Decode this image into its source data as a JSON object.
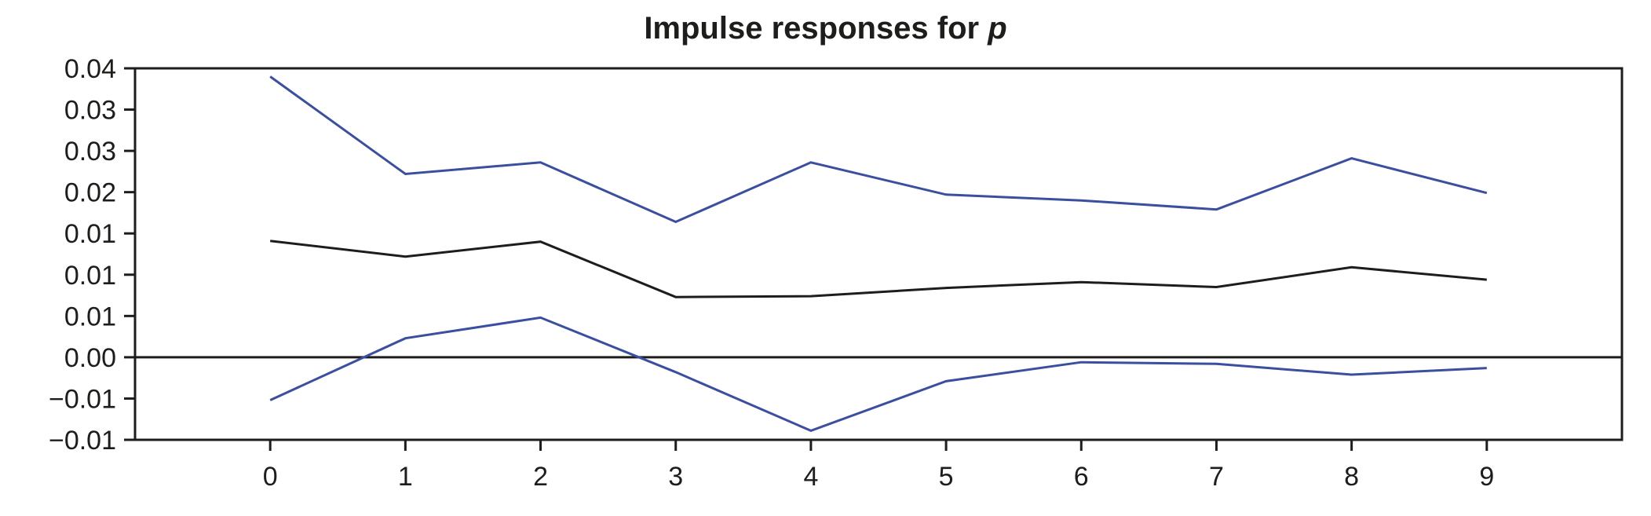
{
  "chart_data": {
    "type": "line",
    "title_prefix": "Impulse responses for ",
    "title_var": "p",
    "xlabel": "",
    "ylabel": "",
    "x": [
      0,
      1,
      2,
      3,
      4,
      5,
      6,
      7,
      8,
      9
    ],
    "xlim": [
      -1,
      10
    ],
    "ylim": [
      -0.01,
      0.035
    ],
    "yticks": [
      -0.01,
      -0.005,
      0.0,
      0.005,
      0.01,
      0.015,
      0.02,
      0.025,
      0.03,
      0.035
    ],
    "ytick_labels": [
      "−0.01",
      "−0.01",
      "0.00",
      "0.01",
      "0.01",
      "0.01",
      "0.02",
      "0.03",
      "0.03",
      "0.04"
    ],
    "xtick_labels": [
      "0",
      "1",
      "2",
      "3",
      "4",
      "5",
      "6",
      "7",
      "8",
      "9"
    ],
    "zero_line": 0.0,
    "grid": false,
    "legend": "none",
    "series": [
      {
        "role": "upper-band",
        "color": "#3a4fa0",
        "values": [
          0.034,
          0.0222,
          0.0236,
          0.0164,
          0.0236,
          0.0197,
          0.019,
          0.0179,
          0.0241,
          0.0199
        ]
      },
      {
        "role": "response",
        "color": "#1d1d1b",
        "values": [
          0.0141,
          0.0122,
          0.014,
          0.0073,
          0.0074,
          0.0084,
          0.0091,
          0.0085,
          0.0109,
          0.0094
        ]
      },
      {
        "role": "lower-band",
        "color": "#3a4fa0",
        "values": [
          -0.0052,
          0.0023,
          0.0048,
          -0.0018,
          -0.0089,
          -0.0029,
          -0.0006,
          -0.0008,
          -0.0021,
          -0.0013
        ]
      }
    ]
  }
}
